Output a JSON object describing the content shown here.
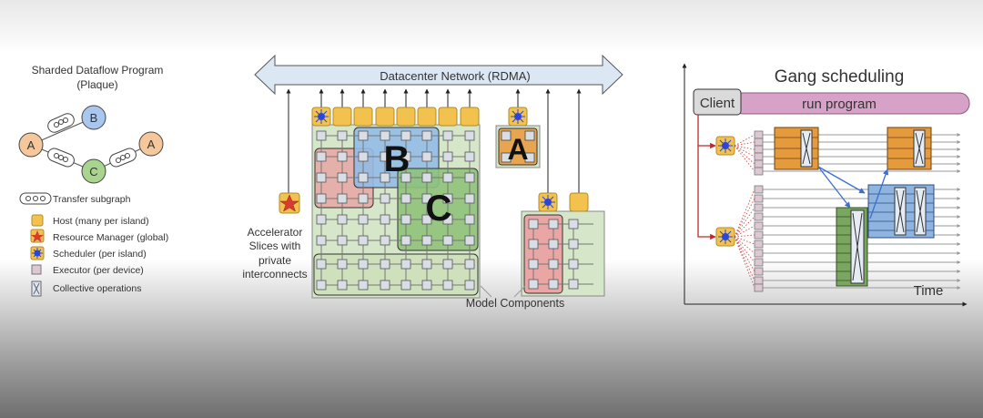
{
  "program": {
    "title_line1": "Sharded Dataflow Program",
    "title_line2": "(Plaque)",
    "nodes": [
      "A",
      "B",
      "C",
      "A"
    ]
  },
  "legend": {
    "items": [
      {
        "icon": "transfer-subgraph-icon",
        "label": "Transfer subgraph"
      },
      {
        "icon": "host-icon",
        "label": "Host (many per island)",
        "color": "#f2c14e"
      },
      {
        "icon": "resource-manager-icon",
        "label": "Resource Manager (global)",
        "color": "#e0473c"
      },
      {
        "icon": "scheduler-icon",
        "label": "Scheduler (per island)",
        "color": "#2a47d8"
      },
      {
        "icon": "executor-icon",
        "label": "Executor (per device)",
        "color": "#dcc8d2"
      },
      {
        "icon": "collective-icon",
        "label": "Collective operations"
      }
    ]
  },
  "network": {
    "label": "Datacenter Network (RDMA)",
    "accelerator_line1": "Accelerator",
    "accelerator_line2": "Slices with",
    "accelerator_line3": "private",
    "accelerator_line4": "interconnects",
    "model_components": "Model Components",
    "label_a": "A",
    "label_b": "B",
    "label_c": "C"
  },
  "gang": {
    "title": "Gang scheduling",
    "client": "Client",
    "run_program": "run program",
    "time": "Time"
  },
  "colors": {
    "host": "#f2c14e",
    "network_arrow": "#dbe8f3",
    "run_bar": "#d7a2c8",
    "orange": "#e59a3c",
    "blue": "#8fb4e0",
    "green": "#7aa660",
    "red": "#e3a2a0"
  }
}
